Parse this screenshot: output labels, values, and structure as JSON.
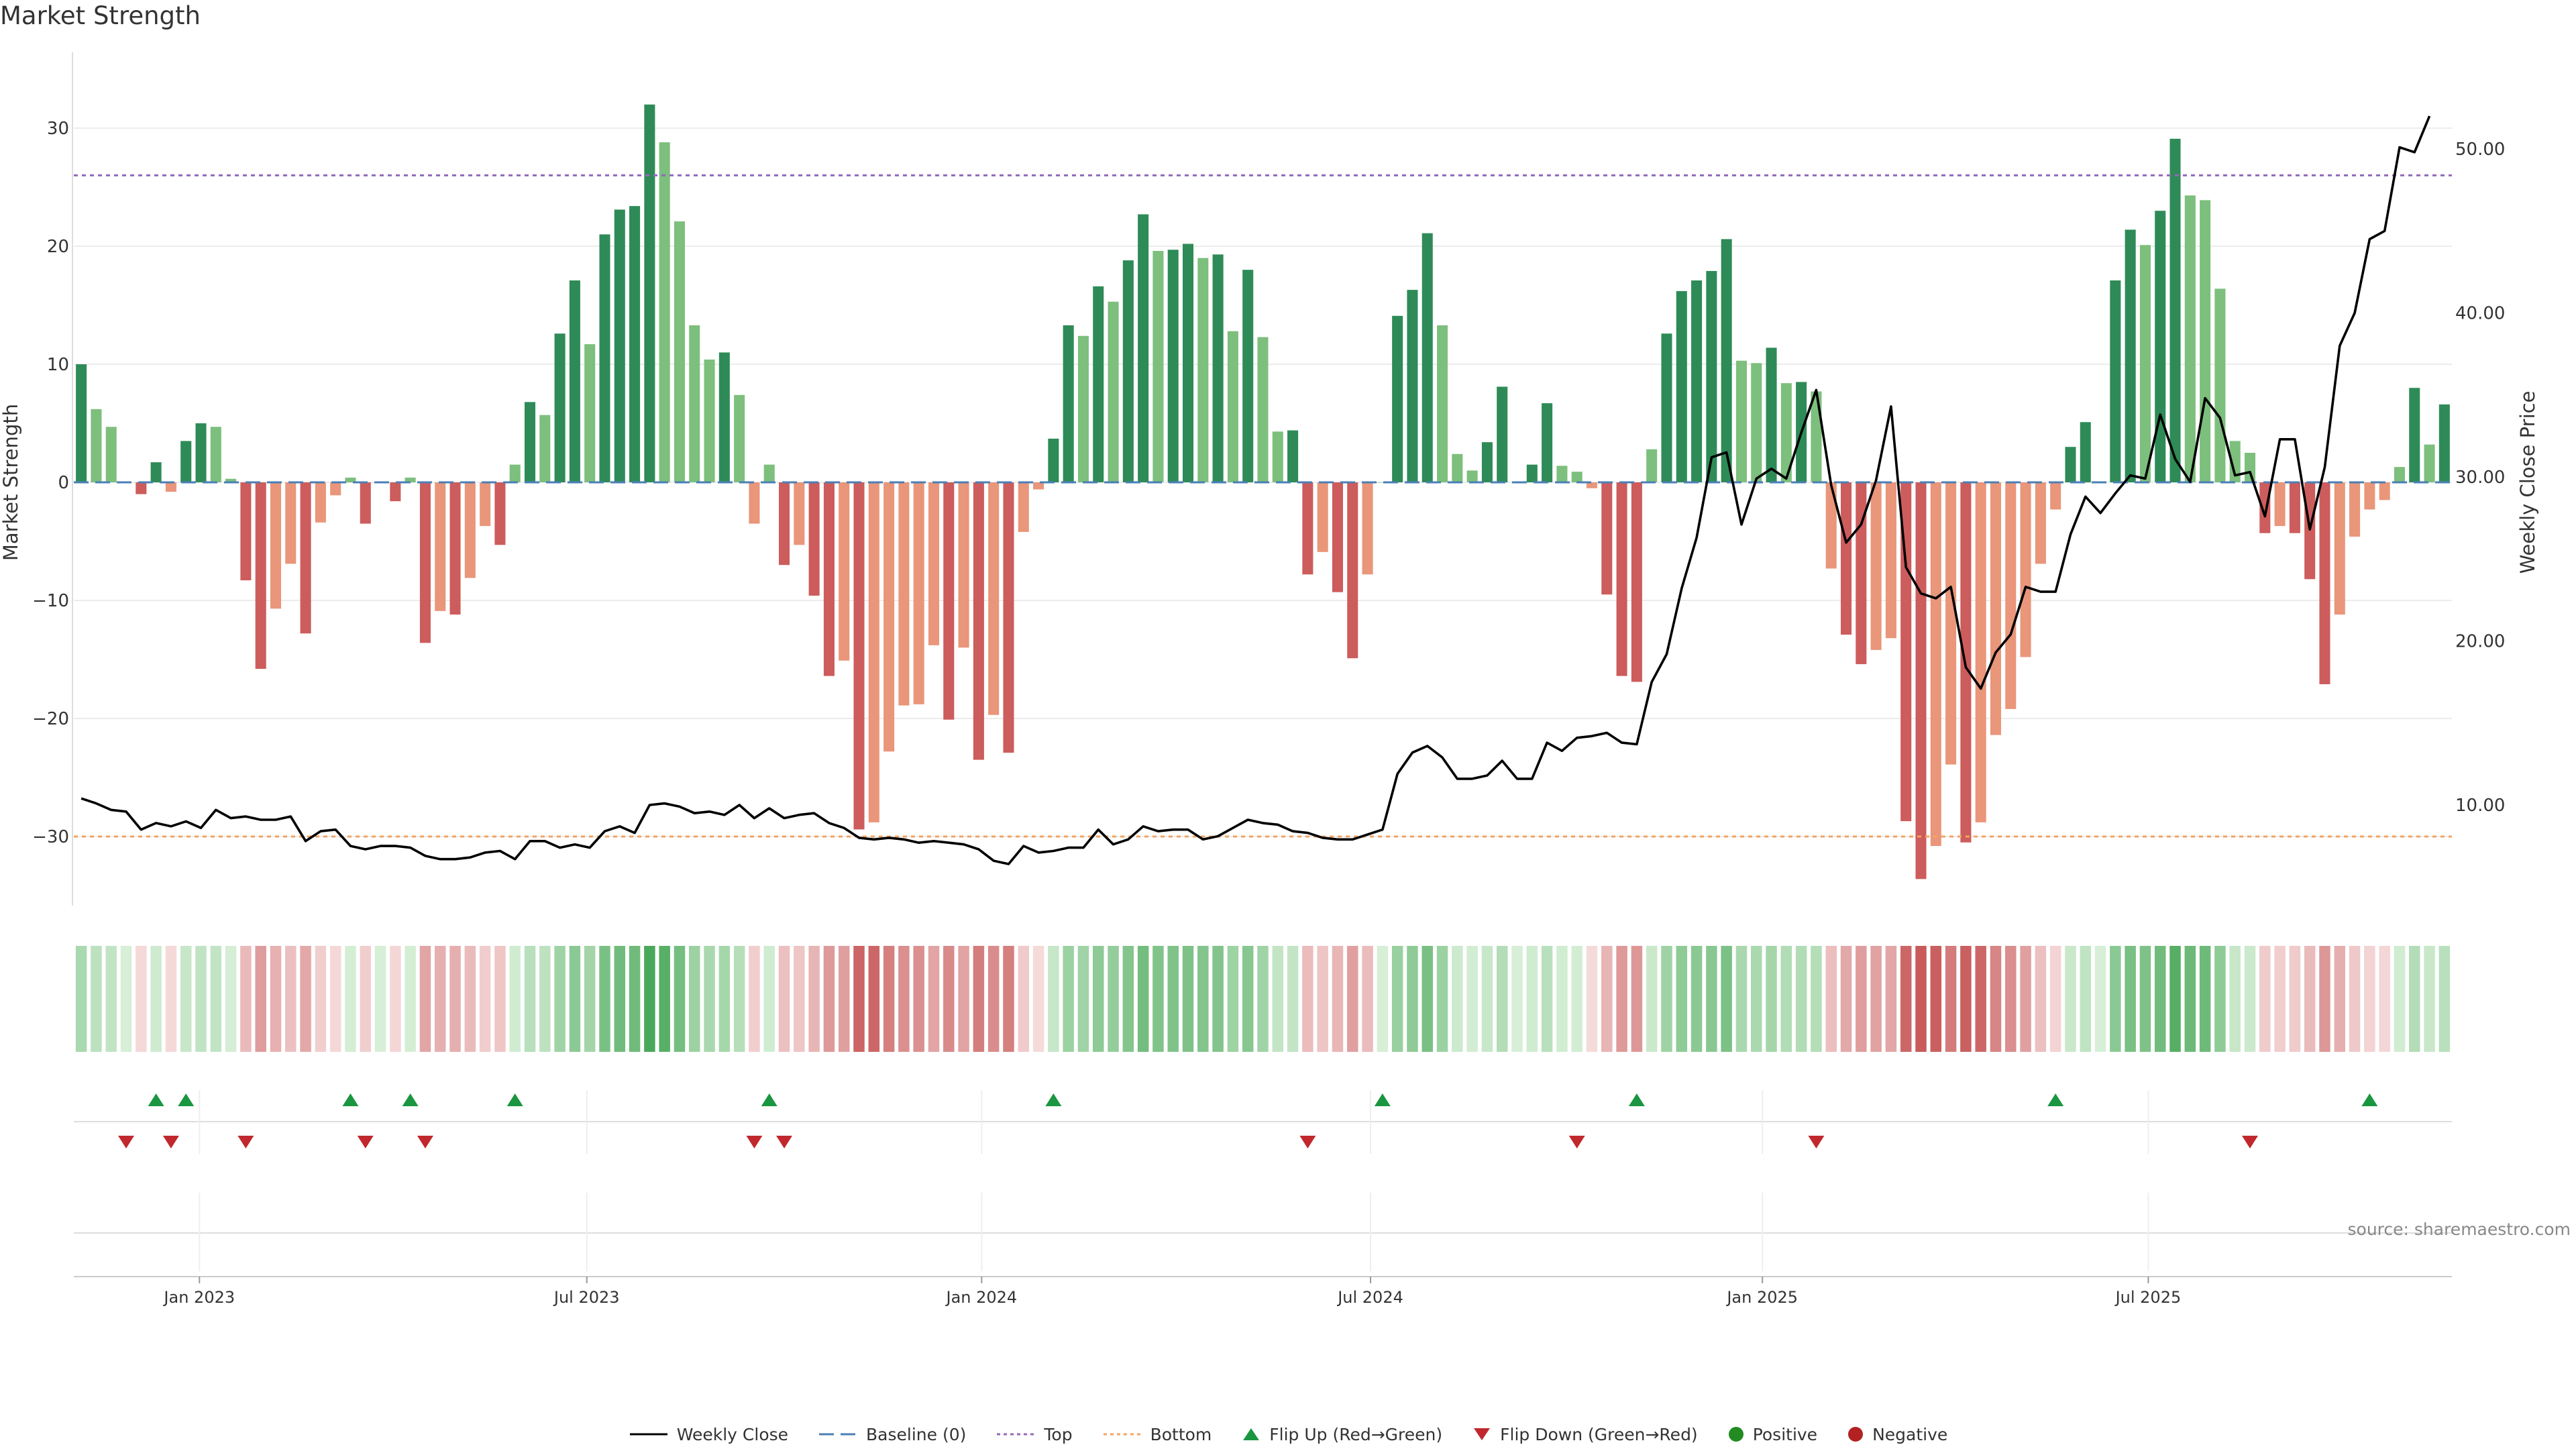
{
  "title": "Market Strength",
  "source": "source: sharemaestro.com",
  "legend": {
    "weekly_close": "Weekly Close",
    "baseline": "Baseline (0)",
    "top": "Top",
    "bottom": "Bottom",
    "flip_up": "Flip Up (Red→Green)",
    "flip_down": "Flip Down (Green→Red)",
    "positive": "Positive",
    "negative": "Negative"
  },
  "colors": {
    "pos_strong": "#2e8b57",
    "pos_light": "#7dbf7d",
    "neg_strong": "#cd5c5c",
    "neg_light": "#e9967a",
    "line": "#000000",
    "baseline": "#4a7fb5",
    "top": "#9467bd",
    "bottom": "#f4a460",
    "flip_up": "#1a9641",
    "flip_down": "#c0282d",
    "positive": "#228b22",
    "negative": "#b22222"
  },
  "chart_data": {
    "type": "bar",
    "title": "Market Strength",
    "ylabel": "Market Strength",
    "y2label": "Weekly Close Price",
    "ylim": [
      -36,
      36
    ],
    "y2lim": [
      4,
      55
    ],
    "yticks": [
      30,
      20,
      10,
      0,
      -10,
      -20,
      -30
    ],
    "y2ticks": [
      50,
      40,
      30,
      20,
      10
    ],
    "y2tick_labels": [
      "50.00",
      "40.00",
      "30.00",
      "20.00",
      "10.00"
    ],
    "top_level": 26,
    "bottom_level": -30,
    "baseline": 0,
    "x_start": "2022-11-04",
    "weeks": 156,
    "x_ticks": [
      {
        "label": "Jan 2023",
        "week": 8.4
      },
      {
        "label": "Jul 2023",
        "week": 34.3
      },
      {
        "label": "Jan 2024",
        "week": 60.7
      },
      {
        "label": "Jul 2024",
        "week": 86.7
      },
      {
        "label": "Jan 2025",
        "week": 112.9
      },
      {
        "label": "Jul 2025",
        "week": 138.7
      }
    ],
    "series": [
      {
        "name": "Market Strength",
        "values": [
          10,
          6.2,
          4.7,
          0,
          -1,
          1.7,
          -0.8,
          3.5,
          5,
          4.7,
          0.3,
          -8.3,
          -15.8,
          -10.7,
          -6.9,
          -12.8,
          -3.4,
          -1.1,
          0.4,
          -3.5,
          0,
          -1.6,
          0.4,
          -13.6,
          -10.9,
          -11.2,
          -8.1,
          -3.7,
          -5.3,
          1.5,
          6.8,
          5.7,
          12.6,
          17.1,
          11.7,
          21,
          23.1,
          23.4,
          32,
          28.8,
          22.1,
          13.3,
          10.4,
          11,
          7.4,
          -3.5,
          1.5,
          -7,
          -5.3,
          -9.6,
          -16.4,
          -15.1,
          -29.4,
          -28.8,
          -22.8,
          -18.9,
          -18.8,
          -13.8,
          -20.1,
          -14,
          -23.5,
          -19.7,
          -22.9,
          -4.2,
          -0.6,
          3.7,
          13.3,
          12.4,
          16.6,
          15.3,
          18.8,
          22.7,
          19.6,
          19.7,
          20.2,
          19,
          19.3,
          12.8,
          18,
          12.3,
          4.3,
          4.4,
          -7.8,
          -5.9,
          -9.3,
          -14.9,
          -7.8,
          0,
          14.1,
          16.3,
          21.1,
          13.3,
          2.4,
          1,
          3.4,
          8.1,
          0,
          1.5,
          6.7,
          1.4,
          0.9,
          -0.5,
          -9.5,
          -16.4,
          -16.9,
          2.8,
          12.6,
          16.2,
          17.1,
          17.9,
          20.6,
          10.3,
          10.1,
          11.4,
          8.4,
          8.5,
          7.7,
          -7.3,
          -12.9,
          -15.4,
          -14.2,
          -13.2,
          -28.7,
          -33.6,
          -30.8,
          -23.9,
          -30.5,
          -28.8,
          -21.4,
          -19.2,
          -14.8,
          -6.9,
          -2.3,
          3,
          5.1,
          0,
          17.1,
          21.4,
          20.1,
          23,
          29.1,
          24.3,
          23.9,
          16.4,
          3.5,
          2.5,
          -4.3,
          -3.7,
          -4.3,
          -8.2,
          -17.1,
          -11.2,
          -4.6,
          -2.3,
          -1.5,
          1.3,
          8,
          3.2,
          6.6
        ]
      },
      {
        "name": "Weekly Close",
        "values": [
          10.4,
          10.1,
          9.7,
          9.6,
          8.5,
          8.9,
          8.7,
          9.0,
          8.6,
          9.7,
          9.2,
          9.3,
          9.1,
          9.1,
          9.3,
          7.8,
          8.4,
          8.5,
          7.5,
          7.3,
          7.5,
          7.5,
          7.4,
          6.9,
          6.7,
          6.7,
          6.8,
          7.1,
          7.2,
          6.7,
          7.8,
          7.8,
          7.4,
          7.6,
          7.4,
          8.4,
          8.7,
          8.3,
          10.0,
          10.1,
          9.9,
          9.5,
          9.6,
          9.4,
          10.0,
          9.2,
          9.8,
          9.2,
          9.4,
          9.5,
          8.9,
          8.6,
          8.0,
          7.9,
          8.0,
          7.9,
          7.7,
          7.8,
          7.7,
          7.6,
          7.3,
          6.6,
          6.4,
          7.5,
          7.1,
          7.2,
          7.4,
          7.4,
          8.5,
          7.6,
          7.9,
          8.7,
          8.4,
          8.5,
          8.5,
          7.9,
          8.1,
          8.6,
          9.1,
          8.9,
          8.8,
          8.4,
          8.3,
          8.0,
          7.9,
          7.9,
          8.2,
          8.5,
          11.9,
          13.2,
          13.6,
          12.9,
          11.6,
          11.6,
          11.8,
          12.7,
          11.6,
          11.6,
          13.8,
          13.3,
          14.1,
          14.2,
          14.4,
          13.8,
          13.7,
          17.5,
          19.2,
          23.2,
          26.3,
          31.2,
          31.5,
          27.1,
          29.9,
          30.5,
          29.9,
          32.7,
          35.3,
          29.5,
          26.0,
          27.1,
          29.8,
          34.3,
          24.5,
          22.9,
          22.6,
          23.3,
          18.4,
          17.1,
          19.3,
          20.4,
          23.3,
          23.0,
          23.0,
          26.5,
          28.8,
          27.8,
          29.0,
          30.1,
          29.9,
          33.8,
          31.1,
          29.7,
          34.8,
          33.6,
          30.1,
          30.3,
          27.6,
          32.3,
          32.3,
          26.8,
          30.6,
          38.0,
          40.0,
          44.5,
          45.0,
          50.1,
          49.8,
          52.0
        ]
      }
    ],
    "heat_strip": "weekly shade of the strength value (green = positive, red = negative)",
    "flip_up_weeks": [
      5,
      7,
      18,
      22,
      29,
      46,
      65,
      87,
      104,
      132,
      153
    ],
    "flip_down_weeks": [
      3,
      6,
      11,
      19,
      23,
      45,
      47,
      82,
      100,
      116,
      145
    ]
  }
}
